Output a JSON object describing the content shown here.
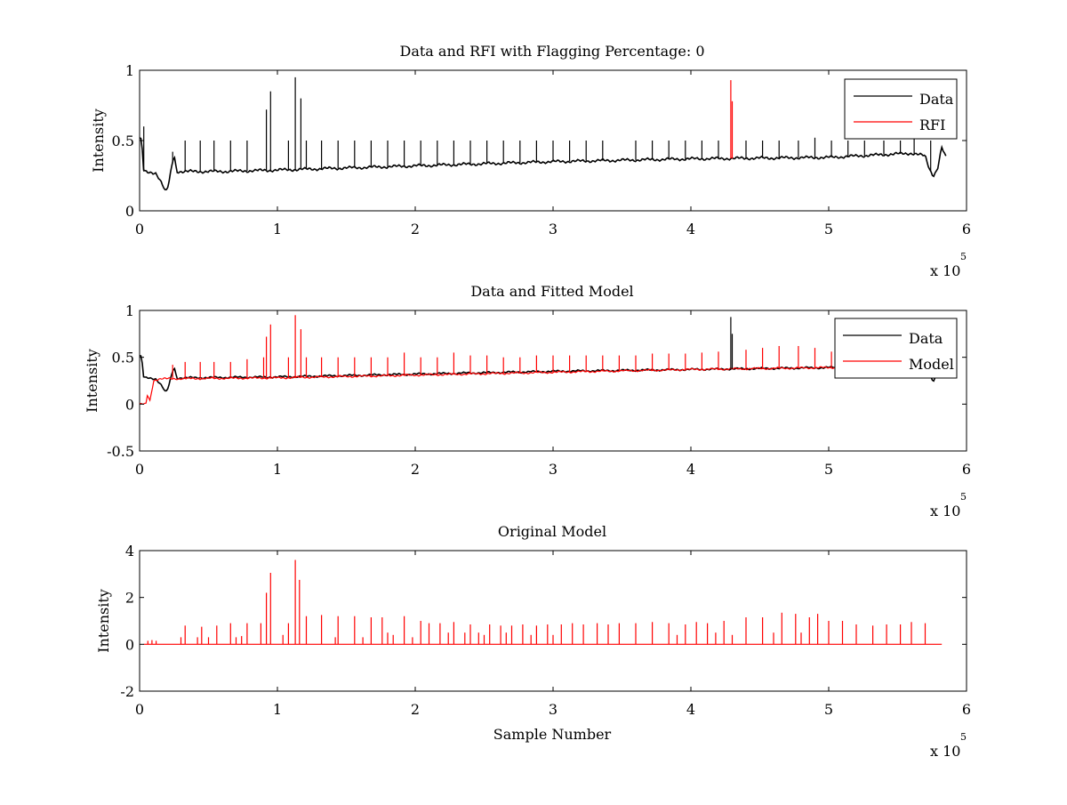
{
  "chart_data": [
    {
      "type": "line",
      "title": "Data and RFI with Flagging Percentage: 0",
      "xlabel": "",
      "ylabel": "Intensity",
      "xlim": [
        0,
        600000
      ],
      "ylim": [
        0,
        1
      ],
      "xticks": [
        "0",
        "1",
        "2",
        "3",
        "4",
        "5",
        "6"
      ],
      "yticks": [
        "0",
        "0.5",
        "1"
      ],
      "x_multiplier": "x 10",
      "x_exponent": "5",
      "grid": false,
      "legend": {
        "placement": "top-right",
        "entries": [
          "Data",
          "RFI"
        ]
      },
      "colors": {
        "Data": "#000000",
        "RFI": "#ff0000"
      },
      "series": [
        {
          "name": "Data",
          "baseline_points": [
            [
              0,
              0.52
            ],
            [
              1500,
              0.5
            ],
            [
              3000,
              0.28
            ],
            [
              6000,
              0.27
            ],
            [
              12000,
              0.27
            ],
            [
              16000,
              0.2
            ],
            [
              19000,
              0.13
            ],
            [
              21000,
              0.18
            ],
            [
              23000,
              0.3
            ],
            [
              25000,
              0.4
            ],
            [
              27000,
              0.28
            ],
            [
              60000,
              0.28
            ],
            [
              100000,
              0.29
            ],
            [
              200000,
              0.32
            ],
            [
              300000,
              0.35
            ],
            [
              400000,
              0.37
            ],
            [
              500000,
              0.38
            ],
            [
              560000,
              0.41
            ],
            [
              570000,
              0.39
            ],
            [
              573000,
              0.3
            ],
            [
              576000,
              0.25
            ],
            [
              579000,
              0.3
            ],
            [
              582000,
              0.45
            ],
            [
              585000,
              0.38
            ]
          ],
          "spikes": [
            [
              3000,
              0.6
            ],
            [
              24000,
              0.42
            ],
            [
              33000,
              0.5
            ],
            [
              44000,
              0.5
            ],
            [
              54000,
              0.5
            ],
            [
              66000,
              0.5
            ],
            [
              78000,
              0.5
            ],
            [
              92000,
              0.72
            ],
            [
              95000,
              0.85
            ],
            [
              108000,
              0.5
            ],
            [
              113000,
              0.95
            ],
            [
              117000,
              0.8
            ],
            [
              121000,
              0.5
            ],
            [
              132000,
              0.5
            ],
            [
              144000,
              0.5
            ],
            [
              156000,
              0.5
            ],
            [
              168000,
              0.5
            ],
            [
              180000,
              0.5
            ],
            [
              192000,
              0.5
            ],
            [
              204000,
              0.5
            ],
            [
              216000,
              0.5
            ],
            [
              228000,
              0.5
            ],
            [
              240000,
              0.5
            ],
            [
              252000,
              0.5
            ],
            [
              264000,
              0.5
            ],
            [
              276000,
              0.5
            ],
            [
              288000,
              0.5
            ],
            [
              300000,
              0.5
            ],
            [
              312000,
              0.5
            ],
            [
              324000,
              0.5
            ],
            [
              336000,
              0.5
            ],
            [
              360000,
              0.5
            ],
            [
              372000,
              0.5
            ],
            [
              384000,
              0.5
            ],
            [
              396000,
              0.5
            ],
            [
              408000,
              0.5
            ],
            [
              420000,
              0.5
            ],
            [
              440000,
              0.5
            ],
            [
              452000,
              0.5
            ],
            [
              464000,
              0.5
            ],
            [
              478000,
              0.5
            ],
            [
              490000,
              0.52
            ],
            [
              502000,
              0.5
            ],
            [
              514000,
              0.5
            ],
            [
              526000,
              0.5
            ],
            [
              540000,
              0.5
            ],
            [
              552000,
              0.5
            ],
            [
              562000,
              0.52
            ],
            [
              574000,
              0.5
            ]
          ]
        },
        {
          "name": "RFI",
          "spikes": [
            [
              429000,
              0.93
            ],
            [
              430000,
              0.78
            ]
          ]
        }
      ]
    },
    {
      "type": "line",
      "title": "Data and Fitted Model",
      "xlabel": "",
      "ylabel": "Intensity",
      "xlim": [
        0,
        600000
      ],
      "ylim": [
        -0.5,
        1
      ],
      "xticks": [
        "0",
        "1",
        "2",
        "3",
        "4",
        "5",
        "6"
      ],
      "yticks": [
        "-0.5",
        "0",
        "0.5",
        "1"
      ],
      "x_multiplier": "x 10",
      "x_exponent": "5",
      "grid": false,
      "legend": {
        "placement": "top-right",
        "entries": [
          "Data",
          "Model"
        ]
      },
      "colors": {
        "Data": "#000000",
        "Model": "#ff0000"
      },
      "series": [
        {
          "name": "Data",
          "baseline_points": [
            [
              0,
              0.52
            ],
            [
              1500,
              0.5
            ],
            [
              3000,
              0.28
            ],
            [
              12000,
              0.27
            ],
            [
              16000,
              0.2
            ],
            [
              19000,
              0.12
            ],
            [
              21000,
              0.18
            ],
            [
              23000,
              0.3
            ],
            [
              25000,
              0.4
            ],
            [
              27000,
              0.28
            ],
            [
              100000,
              0.29
            ],
            [
              200000,
              0.32
            ],
            [
              300000,
              0.35
            ],
            [
              400000,
              0.37
            ],
            [
              500000,
              0.39
            ],
            [
              560000,
              0.41
            ],
            [
              570000,
              0.38
            ],
            [
              576000,
              0.25
            ],
            [
              582000,
              0.42
            ],
            [
              585000,
              0.4
            ]
          ],
          "spikes": [
            [
              429000,
              0.93
            ],
            [
              430000,
              0.75
            ]
          ]
        },
        {
          "name": "Model",
          "baseline_points": [
            [
              0,
              0.0
            ],
            [
              5000,
              0.0
            ],
            [
              6000,
              0.15
            ],
            [
              7000,
              0.0
            ],
            [
              9000,
              0.15
            ],
            [
              10000,
              0.25
            ],
            [
              14000,
              0.27
            ],
            [
              100000,
              0.28
            ],
            [
              200000,
              0.31
            ],
            [
              300000,
              0.34
            ],
            [
              400000,
              0.37
            ],
            [
              500000,
              0.39
            ],
            [
              560000,
              0.4
            ]
          ],
          "spikes": [
            [
              24000,
              0.42
            ],
            [
              33000,
              0.45
            ],
            [
              44000,
              0.45
            ],
            [
              54000,
              0.45
            ],
            [
              66000,
              0.45
            ],
            [
              78000,
              0.48
            ],
            [
              90000,
              0.5
            ],
            [
              92000,
              0.72
            ],
            [
              95000,
              0.85
            ],
            [
              108000,
              0.5
            ],
            [
              113000,
              0.95
            ],
            [
              117000,
              0.8
            ],
            [
              121000,
              0.5
            ],
            [
              132000,
              0.5
            ],
            [
              144000,
              0.5
            ],
            [
              156000,
              0.5
            ],
            [
              168000,
              0.5
            ],
            [
              180000,
              0.5
            ],
            [
              192000,
              0.55
            ],
            [
              204000,
              0.5
            ],
            [
              216000,
              0.5
            ],
            [
              228000,
              0.55
            ],
            [
              240000,
              0.52
            ],
            [
              252000,
              0.52
            ],
            [
              264000,
              0.5
            ],
            [
              276000,
              0.5
            ],
            [
              288000,
              0.52
            ],
            [
              300000,
              0.52
            ],
            [
              312000,
              0.52
            ],
            [
              324000,
              0.52
            ],
            [
              336000,
              0.52
            ],
            [
              348000,
              0.52
            ],
            [
              360000,
              0.52
            ],
            [
              372000,
              0.54
            ],
            [
              384000,
              0.54
            ],
            [
              396000,
              0.54
            ],
            [
              408000,
              0.55
            ],
            [
              420000,
              0.56
            ],
            [
              440000,
              0.58
            ],
            [
              452000,
              0.6
            ],
            [
              464000,
              0.62
            ],
            [
              478000,
              0.62
            ],
            [
              490000,
              0.6
            ],
            [
              502000,
              0.56
            ]
          ]
        }
      ]
    },
    {
      "type": "line",
      "title": "Original Model",
      "xlabel": "Sample Number",
      "ylabel": "Intensity",
      "xlim": [
        0,
        600000
      ],
      "ylim": [
        -2,
        4
      ],
      "xticks": [
        "0",
        "1",
        "2",
        "3",
        "4",
        "5",
        "6"
      ],
      "yticks": [
        "-2",
        "0",
        "2",
        "4"
      ],
      "x_multiplier": "x 10",
      "x_exponent": "5",
      "grid": false,
      "colors": {
        "Model": "#ff0000"
      },
      "series": [
        {
          "name": "",
          "baseline_points": [
            [
              3000,
              0.0
            ],
            [
              583000,
              0.0
            ]
          ],
          "spikes": [
            [
              6000,
              0.15
            ],
            [
              9000,
              0.18
            ],
            [
              12000,
              0.15
            ],
            [
              30000,
              0.3
            ],
            [
              33000,
              0.8
            ],
            [
              42000,
              0.3
            ],
            [
              45000,
              0.75
            ],
            [
              50000,
              0.3
            ],
            [
              56000,
              0.8
            ],
            [
              66000,
              0.9
            ],
            [
              70000,
              0.3
            ],
            [
              74000,
              0.35
            ],
            [
              78000,
              0.9
            ],
            [
              88000,
              0.9
            ],
            [
              92000,
              2.2
            ],
            [
              95000,
              3.05
            ],
            [
              104000,
              0.4
            ],
            [
              108000,
              0.9
            ],
            [
              113000,
              3.6
            ],
            [
              116000,
              2.75
            ],
            [
              121000,
              1.2
            ],
            [
              132000,
              1.25
            ],
            [
              142000,
              0.3
            ],
            [
              144000,
              1.2
            ],
            [
              156000,
              1.2
            ],
            [
              162000,
              0.3
            ],
            [
              168000,
              1.15
            ],
            [
              176000,
              1.15
            ],
            [
              180000,
              0.5
            ],
            [
              184000,
              0.4
            ],
            [
              192000,
              1.2
            ],
            [
              198000,
              0.3
            ],
            [
              204000,
              1.0
            ],
            [
              210000,
              0.9
            ],
            [
              218000,
              0.9
            ],
            [
              224000,
              0.5
            ],
            [
              228000,
              0.95
            ],
            [
              236000,
              0.5
            ],
            [
              240000,
              0.85
            ],
            [
              246000,
              0.5
            ],
            [
              250000,
              0.4
            ],
            [
              254000,
              0.85
            ],
            [
              262000,
              0.8
            ],
            [
              266000,
              0.5
            ],
            [
              270000,
              0.8
            ],
            [
              278000,
              0.85
            ],
            [
              284000,
              0.4
            ],
            [
              288000,
              0.8
            ],
            [
              296000,
              0.85
            ],
            [
              300000,
              0.4
            ],
            [
              306000,
              0.85
            ],
            [
              314000,
              0.9
            ],
            [
              322000,
              0.85
            ],
            [
              332000,
              0.9
            ],
            [
              340000,
              0.85
            ],
            [
              348000,
              0.9
            ],
            [
              360000,
              0.9
            ],
            [
              372000,
              0.95
            ],
            [
              384000,
              0.9
            ],
            [
              390000,
              0.4
            ],
            [
              396000,
              0.85
            ],
            [
              404000,
              0.95
            ],
            [
              412000,
              0.9
            ],
            [
              418000,
              0.5
            ],
            [
              424000,
              1.0
            ],
            [
              430000,
              0.4
            ],
            [
              440000,
              1.15
            ],
            [
              452000,
              1.15
            ],
            [
              460000,
              0.5
            ],
            [
              466000,
              1.35
            ],
            [
              476000,
              1.3
            ],
            [
              480000,
              0.5
            ],
            [
              486000,
              1.15
            ],
            [
              492000,
              1.3
            ],
            [
              500000,
              1.0
            ],
            [
              510000,
              1.0
            ],
            [
              520000,
              0.85
            ],
            [
              532000,
              0.8
            ],
            [
              542000,
              0.85
            ],
            [
              552000,
              0.85
            ],
            [
              560000,
              0.95
            ],
            [
              570000,
              0.9
            ]
          ]
        }
      ]
    }
  ]
}
